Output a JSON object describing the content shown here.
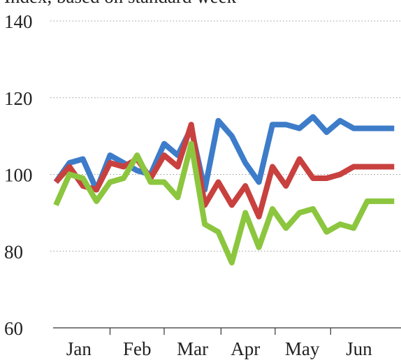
{
  "subtitle": "Index, based on standard week",
  "chart_data": {
    "type": "line",
    "title": "",
    "subtitle": "Index, based on standard week",
    "xlabel": "",
    "ylabel": "",
    "ylim": [
      60,
      140
    ],
    "yticks": [
      60,
      80,
      100,
      120,
      140
    ],
    "xlim": [
      0,
      25.5
    ],
    "grid": true,
    "legend": "none",
    "month_labels": [
      "Jan",
      "Feb",
      "Mar",
      "Apr",
      "May",
      "Jun"
    ],
    "month_positions": [
      1.7,
      6.0,
      10.1,
      14.0,
      18.2,
      22.4
    ],
    "month_boundaries": [
      4.0,
      8.0,
      12.2,
      16.2,
      20.3
    ],
    "x": [
      0,
      1,
      2,
      3,
      4,
      5,
      6,
      7,
      8,
      9,
      10,
      11,
      12,
      13,
      14,
      15,
      16,
      17,
      18,
      19,
      20,
      21,
      22,
      23,
      24,
      25
    ],
    "series": [
      {
        "color": "#3d7cc9",
        "values": [
          98,
          103,
          104,
          96,
          105,
          103,
          101,
          100,
          108,
          105,
          112,
          96,
          114,
          110,
          103,
          98,
          113,
          113,
          112,
          115,
          111,
          114,
          112,
          112,
          112,
          112
        ]
      },
      {
        "color": "#c8413f",
        "values": [
          98,
          102,
          97,
          96,
          103,
          102,
          104,
          99,
          105,
          102,
          113,
          92,
          98,
          92,
          97,
          89,
          102,
          97,
          104,
          99,
          99,
          100,
          102,
          102,
          102,
          102
        ]
      },
      {
        "color": "#8cc63f",
        "values": [
          92,
          100,
          99,
          93,
          98,
          99,
          105,
          98,
          98,
          94,
          108,
          87,
          85,
          77,
          90,
          81,
          91,
          86,
          90,
          91,
          85,
          87,
          86,
          93,
          93,
          93
        ]
      }
    ]
  }
}
